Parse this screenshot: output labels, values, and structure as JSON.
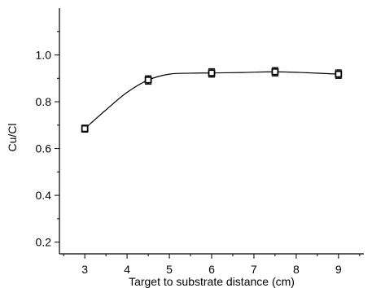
{
  "chart_data": {
    "type": "scatter",
    "xlabel": "Target to substrate distance (cm)",
    "ylabel": "Cu/Cl",
    "xlim": [
      2.4,
      9.6
    ],
    "ylim": [
      0.15,
      1.2
    ],
    "x_ticks": [
      3,
      4,
      5,
      6,
      7,
      8,
      9
    ],
    "y_ticks": [
      0.2,
      0.4,
      0.6,
      0.8,
      1.0
    ],
    "x_tick_labels": [
      "3",
      "4",
      "5",
      "6",
      "7",
      "8",
      "9"
    ],
    "y_tick_labels": [
      "0.2",
      "0.4",
      "0.6",
      "0.8",
      "1.0"
    ],
    "grid": false,
    "marker": "open-square",
    "fit_curve": "smooth",
    "series": [
      {
        "x": [
          3,
          4.5,
          6,
          7.5,
          9
        ],
        "y": [
          0.685,
          0.893,
          0.923,
          0.928,
          0.918
        ],
        "error": [
          0.015,
          0.018,
          0.018,
          0.018,
          0.018
        ]
      }
    ],
    "fit_points": {
      "x": [
        3,
        3.5,
        4,
        4.5,
        5,
        5.5,
        6,
        6.75,
        7.5,
        8.25,
        9
      ],
      "y": [
        0.685,
        0.765,
        0.84,
        0.893,
        0.918,
        0.922,
        0.923,
        0.925,
        0.928,
        0.924,
        0.918
      ]
    }
  }
}
